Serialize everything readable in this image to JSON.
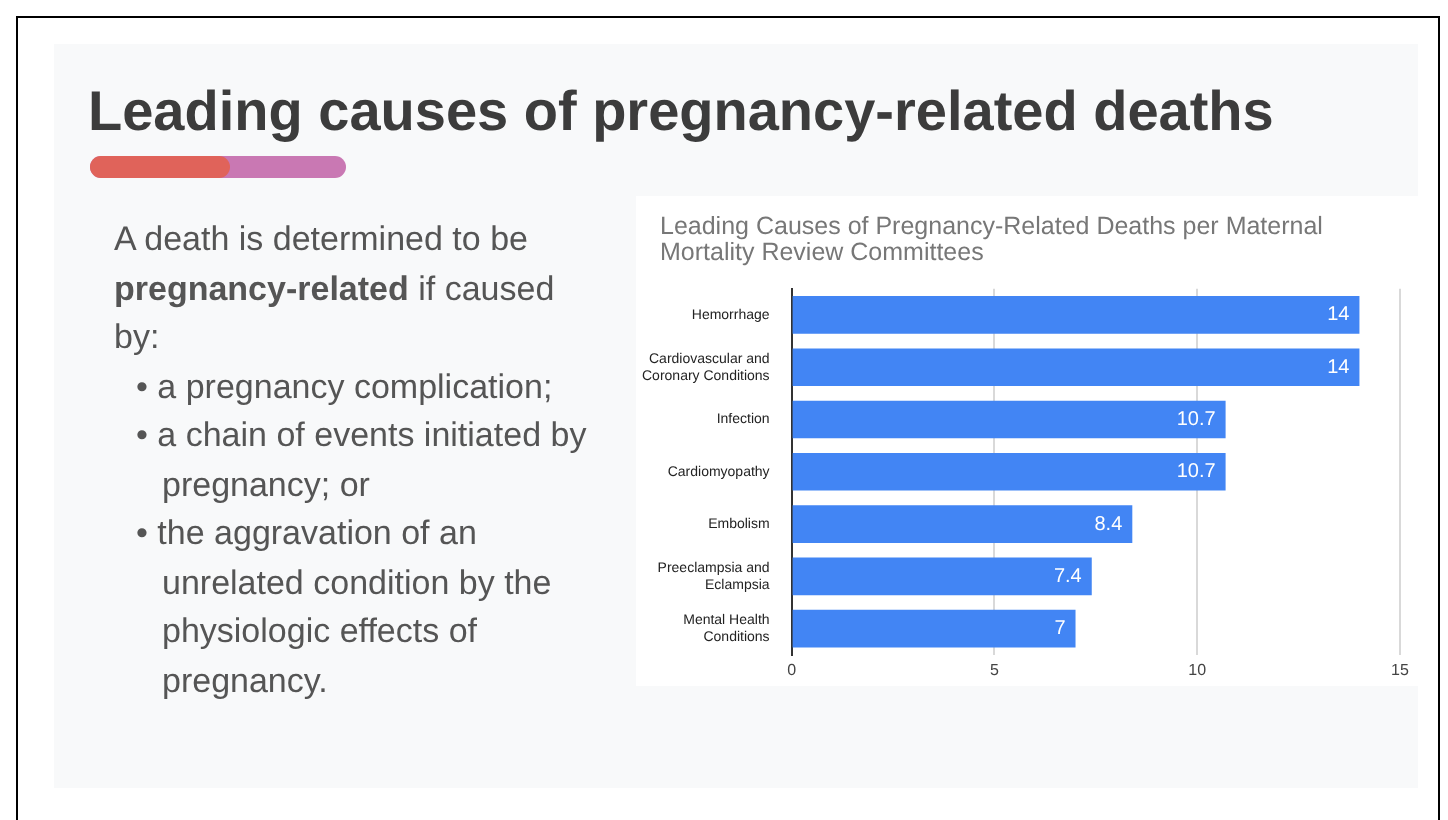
{
  "chart_data": {
    "type": "bar",
    "orientation": "horizontal",
    "title": "Leading causes of pregnancy-related deaths",
    "subtitle": "Leading Causes of Pregnancy-Related Deaths per Maternal Mortality Review Committees",
    "annotations": [
      "A death is determined to be ",
      "pregnancy-related",
      " if caused by:",
      "• a pregnancy complication;",
      "• a chain of events initiated by pregnancy; or",
      "• the aggravation of an unrelated condition by the physiologic effects of pregnancy."
    ],
    "categories": [
      "Hemorrhage",
      "Cardiovascular and Coronary Conditions",
      "Infection",
      "Cardiomyopathy",
      "Embolism",
      "Preeclampsia and Eclampsia",
      "Mental Health Conditions"
    ],
    "values": [
      14,
      14,
      10.7,
      10.7,
      8.4,
      7.4,
      7
    ],
    "color": "#4285f4",
    "xlim": [
      0,
      15
    ],
    "xticks": [
      0,
      5,
      10,
      15
    ],
    "grid": "x",
    "legend": false,
    "data_labels": true
  }
}
